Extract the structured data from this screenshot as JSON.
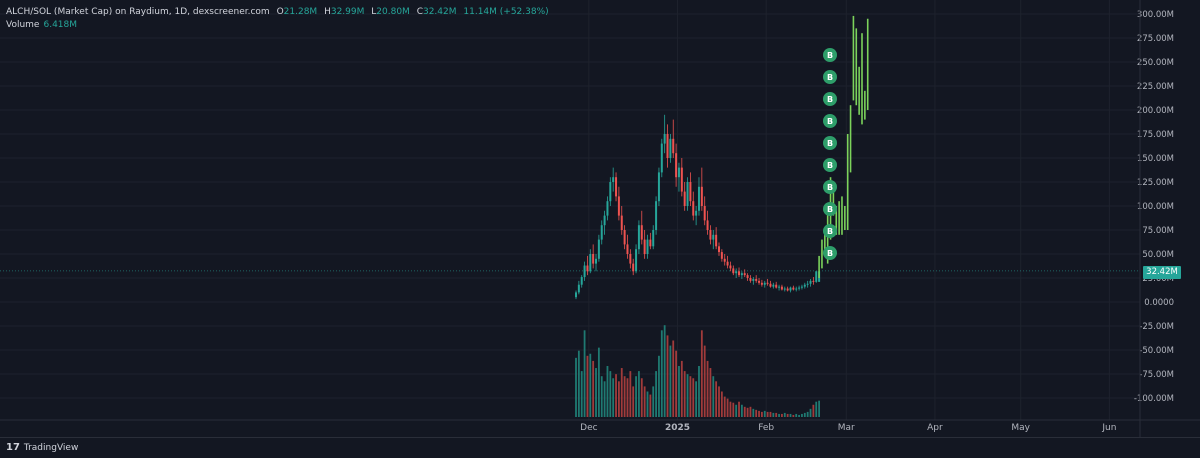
{
  "legend": {
    "symbol": "ALCH/SOL (Market Cap) on Raydium, 1D, dexscreener.com",
    "open_key": "O",
    "open": "21.28M",
    "high_key": "H",
    "high": "32.99M",
    "low_key": "L",
    "low": "20.80M",
    "close_key": "C",
    "close": "32.42M",
    "change": "11.14M (+52.38%)",
    "volume_label": "Volume",
    "volume_value": "6.418M"
  },
  "footer": {
    "brand": "TradingView",
    "brand_mark": "17"
  },
  "colors": {
    "up": "#26a69a",
    "down": "#ef5350",
    "up_late": "#7cd35b",
    "marker": "#2e9e6a",
    "background": "#131722",
    "grid": "#1e222d"
  },
  "chart_data": {
    "type": "candlestick",
    "y_axis_ticks": [
      "300.00M",
      "275.00M",
      "250.00M",
      "225.00M",
      "200.00M",
      "175.00M",
      "150.00M",
      "125.00M",
      "100.00M",
      "75.00M",
      "50.00M",
      "25.00M",
      "0.0000",
      "-25.00M",
      "-50.00M",
      "-75.00M",
      "-100.00M"
    ],
    "y_axis_values": [
      300,
      275,
      250,
      225,
      200,
      175,
      150,
      125,
      100,
      75,
      50,
      25,
      0,
      -25,
      -50,
      -75,
      -100
    ],
    "x_axis_ticks": [
      {
        "label": "Dec",
        "index": 1
      },
      {
        "label": "2025",
        "index": 32
      },
      {
        "label": "Feb",
        "index": 63
      },
      {
        "label": "Mar",
        "index": 91
      },
      {
        "label": "Apr",
        "index": 122
      },
      {
        "label": "May",
        "index": 152
      },
      {
        "label": "Jun",
        "index": 183
      }
    ],
    "current_price_label": "32.42M",
    "current_price": 32.42,
    "marker_label": "B",
    "markers": [
      {
        "index": 86,
        "y": 52
      },
      {
        "index": 86,
        "y": 74
      },
      {
        "index": 86,
        "y": 96
      },
      {
        "index": 86,
        "y": 118
      },
      {
        "index": 86,
        "y": 140
      },
      {
        "index": 86,
        "y": 162
      },
      {
        "index": 86,
        "y": 184
      },
      {
        "index": 86,
        "y": 206
      },
      {
        "index": 86,
        "y": 228
      },
      {
        "index": 86,
        "y": 250
      }
    ],
    "candles": [
      {
        "o": 5,
        "h": 12,
        "l": 3,
        "c": 10,
        "v": 58
      },
      {
        "o": 10,
        "h": 22,
        "l": 8,
        "c": 18,
        "v": 65
      },
      {
        "o": 18,
        "h": 28,
        "l": 15,
        "c": 26,
        "v": 45
      },
      {
        "o": 26,
        "h": 42,
        "l": 22,
        "c": 38,
        "v": 85
      },
      {
        "o": 38,
        "h": 48,
        "l": 28,
        "c": 32,
        "v": 60
      },
      {
        "o": 32,
        "h": 55,
        "l": 30,
        "c": 50,
        "v": 62
      },
      {
        "o": 50,
        "h": 60,
        "l": 35,
        "c": 40,
        "v": 55
      },
      {
        "o": 40,
        "h": 50,
        "l": 32,
        "c": 45,
        "v": 48
      },
      {
        "o": 45,
        "h": 70,
        "l": 42,
        "c": 65,
        "v": 68
      },
      {
        "o": 65,
        "h": 85,
        "l": 60,
        "c": 80,
        "v": 40
      },
      {
        "o": 80,
        "h": 95,
        "l": 70,
        "c": 90,
        "v": 35
      },
      {
        "o": 90,
        "h": 110,
        "l": 85,
        "c": 105,
        "v": 50
      },
      {
        "o": 105,
        "h": 130,
        "l": 100,
        "c": 125,
        "v": 45
      },
      {
        "o": 125,
        "h": 140,
        "l": 115,
        "c": 130,
        "v": 38
      },
      {
        "o": 130,
        "h": 135,
        "l": 105,
        "c": 110,
        "v": 42
      },
      {
        "o": 110,
        "h": 120,
        "l": 85,
        "c": 90,
        "v": 35
      },
      {
        "o": 90,
        "h": 100,
        "l": 70,
        "c": 75,
        "v": 48
      },
      {
        "o": 75,
        "h": 80,
        "l": 55,
        "c": 60,
        "v": 40
      },
      {
        "o": 60,
        "h": 70,
        "l": 45,
        "c": 50,
        "v": 38
      },
      {
        "o": 50,
        "h": 55,
        "l": 35,
        "c": 40,
        "v": 45
      },
      {
        "o": 40,
        "h": 45,
        "l": 28,
        "c": 32,
        "v": 30
      },
      {
        "o": 32,
        "h": 60,
        "l": 30,
        "c": 55,
        "v": 40
      },
      {
        "o": 55,
        "h": 85,
        "l": 50,
        "c": 80,
        "v": 45
      },
      {
        "o": 80,
        "h": 95,
        "l": 60,
        "c": 65,
        "v": 38
      },
      {
        "o": 65,
        "h": 75,
        "l": 45,
        "c": 50,
        "v": 30
      },
      {
        "o": 50,
        "h": 70,
        "l": 45,
        "c": 65,
        "v": 25
      },
      {
        "o": 65,
        "h": 72,
        "l": 55,
        "c": 58,
        "v": 22
      },
      {
        "o": 58,
        "h": 80,
        "l": 55,
        "c": 75,
        "v": 30
      },
      {
        "o": 75,
        "h": 110,
        "l": 70,
        "c": 105,
        "v": 45
      },
      {
        "o": 105,
        "h": 140,
        "l": 100,
        "c": 135,
        "v": 60
      },
      {
        "o": 135,
        "h": 170,
        "l": 130,
        "c": 165,
        "v": 85
      },
      {
        "o": 165,
        "h": 195,
        "l": 155,
        "c": 175,
        "v": 90
      },
      {
        "o": 175,
        "h": 185,
        "l": 140,
        "c": 150,
        "v": 80
      },
      {
        "o": 150,
        "h": 175,
        "l": 145,
        "c": 170,
        "v": 70
      },
      {
        "o": 170,
        "h": 190,
        "l": 150,
        "c": 155,
        "v": 75
      },
      {
        "o": 155,
        "h": 165,
        "l": 120,
        "c": 130,
        "v": 65
      },
      {
        "o": 130,
        "h": 145,
        "l": 115,
        "c": 140,
        "v": 50
      },
      {
        "o": 140,
        "h": 150,
        "l": 110,
        "c": 115,
        "v": 55
      },
      {
        "o": 115,
        "h": 125,
        "l": 95,
        "c": 100,
        "v": 45
      },
      {
        "o": 100,
        "h": 130,
        "l": 95,
        "c": 125,
        "v": 42
      },
      {
        "o": 125,
        "h": 135,
        "l": 100,
        "c": 105,
        "v": 40
      },
      {
        "o": 105,
        "h": 115,
        "l": 85,
        "c": 90,
        "v": 38
      },
      {
        "o": 90,
        "h": 100,
        "l": 80,
        "c": 95,
        "v": 35
      },
      {
        "o": 95,
        "h": 130,
        "l": 90,
        "c": 120,
        "v": 50
      },
      {
        "o": 120,
        "h": 140,
        "l": 95,
        "c": 100,
        "v": 85
      },
      {
        "o": 100,
        "h": 110,
        "l": 80,
        "c": 85,
        "v": 70
      },
      {
        "o": 85,
        "h": 95,
        "l": 70,
        "c": 75,
        "v": 55
      },
      {
        "o": 75,
        "h": 80,
        "l": 60,
        "c": 65,
        "v": 48
      },
      {
        "o": 65,
        "h": 75,
        "l": 55,
        "c": 70,
        "v": 40
      },
      {
        "o": 70,
        "h": 78,
        "l": 55,
        "c": 58,
        "v": 35
      },
      {
        "o": 58,
        "h": 62,
        "l": 48,
        "c": 52,
        "v": 30
      },
      {
        "o": 52,
        "h": 55,
        "l": 42,
        "c": 45,
        "v": 25
      },
      {
        "o": 45,
        "h": 50,
        "l": 38,
        "c": 42,
        "v": 20
      },
      {
        "o": 42,
        "h": 48,
        "l": 35,
        "c": 38,
        "v": 18
      },
      {
        "o": 38,
        "h": 42,
        "l": 32,
        "c": 35,
        "v": 15
      },
      {
        "o": 35,
        "h": 38,
        "l": 28,
        "c": 30,
        "v": 14
      },
      {
        "o": 30,
        "h": 35,
        "l": 25,
        "c": 32,
        "v": 12
      },
      {
        "o": 32,
        "h": 36,
        "l": 26,
        "c": 28,
        "v": 15
      },
      {
        "o": 28,
        "h": 32,
        "l": 24,
        "c": 30,
        "v": 12
      },
      {
        "o": 30,
        "h": 34,
        "l": 26,
        "c": 28,
        "v": 10
      },
      {
        "o": 28,
        "h": 30,
        "l": 22,
        "c": 25,
        "v": 9
      },
      {
        "o": 25,
        "h": 28,
        "l": 20,
        "c": 22,
        "v": 10
      },
      {
        "o": 22,
        "h": 26,
        "l": 18,
        "c": 24,
        "v": 8
      },
      {
        "o": 24,
        "h": 28,
        "l": 20,
        "c": 22,
        "v": 7
      },
      {
        "o": 22,
        "h": 25,
        "l": 18,
        "c": 20,
        "v": 6
      },
      {
        "o": 20,
        "h": 23,
        "l": 16,
        "c": 18,
        "v": 5
      },
      {
        "o": 18,
        "h": 22,
        "l": 15,
        "c": 20,
        "v": 6
      },
      {
        "o": 20,
        "h": 24,
        "l": 17,
        "c": 19,
        "v": 5
      },
      {
        "o": 19,
        "h": 22,
        "l": 15,
        "c": 16,
        "v": 5
      },
      {
        "o": 16,
        "h": 20,
        "l": 14,
        "c": 18,
        "v": 4
      },
      {
        "o": 18,
        "h": 21,
        "l": 14,
        "c": 15,
        "v": 4
      },
      {
        "o": 15,
        "h": 18,
        "l": 12,
        "c": 16,
        "v": 3
      },
      {
        "o": 16,
        "h": 18,
        "l": 12,
        "c": 13,
        "v": 3
      },
      {
        "o": 13,
        "h": 16,
        "l": 11,
        "c": 14,
        "v": 4
      },
      {
        "o": 14,
        "h": 16,
        "l": 11,
        "c": 12,
        "v": 3
      },
      {
        "o": 12,
        "h": 16,
        "l": 10,
        "c": 15,
        "v": 3
      },
      {
        "o": 15,
        "h": 17,
        "l": 12,
        "c": 13,
        "v": 2
      },
      {
        "o": 13,
        "h": 16,
        "l": 11,
        "c": 14,
        "v": 3
      },
      {
        "o": 14,
        "h": 17,
        "l": 12,
        "c": 15,
        "v": 2
      },
      {
        "o": 15,
        "h": 18,
        "l": 13,
        "c": 16,
        "v": 3
      },
      {
        "o": 16,
        "h": 20,
        "l": 14,
        "c": 18,
        "v": 4
      },
      {
        "o": 18,
        "h": 22,
        "l": 15,
        "c": 19,
        "v": 5
      },
      {
        "o": 19,
        "h": 24,
        "l": 16,
        "c": 22,
        "v": 8
      },
      {
        "o": 22,
        "h": 26,
        "l": 18,
        "c": 21,
        "v": 12
      },
      {
        "o": 21,
        "h": 32,
        "l": 20,
        "c": 32,
        "v": 15
      },
      {
        "o": 21,
        "h": 33,
        "l": 21,
        "c": 32,
        "v": 16
      }
    ],
    "late_bars": [
      {
        "index": 85,
        "h": 48,
        "l": 25
      },
      {
        "index": 86,
        "h": 65,
        "l": 35
      },
      {
        "index": 87,
        "h": 75,
        "l": 50
      },
      {
        "index": 88,
        "h": 100,
        "l": 40
      },
      {
        "index": 89,
        "h": 130,
        "l": 65
      },
      {
        "index": 90,
        "h": 120,
        "l": 90
      },
      {
        "index": 91,
        "h": 100,
        "l": 70
      },
      {
        "index": 92,
        "h": 105,
        "l": 70
      },
      {
        "index": 93,
        "h": 110,
        "l": 70
      },
      {
        "index": 94,
        "h": 100,
        "l": 75
      },
      {
        "index": 95,
        "h": 175,
        "l": 75
      },
      {
        "index": 96,
        "h": 205,
        "l": 135
      },
      {
        "index": 97,
        "h": 298,
        "l": 210
      },
      {
        "index": 98,
        "h": 285,
        "l": 205
      },
      {
        "index": 99,
        "h": 245,
        "l": 195
      },
      {
        "index": 100,
        "h": 280,
        "l": 185
      },
      {
        "index": 101,
        "h": 220,
        "l": 190
      },
      {
        "index": 102,
        "h": 295,
        "l": 200
      }
    ]
  }
}
